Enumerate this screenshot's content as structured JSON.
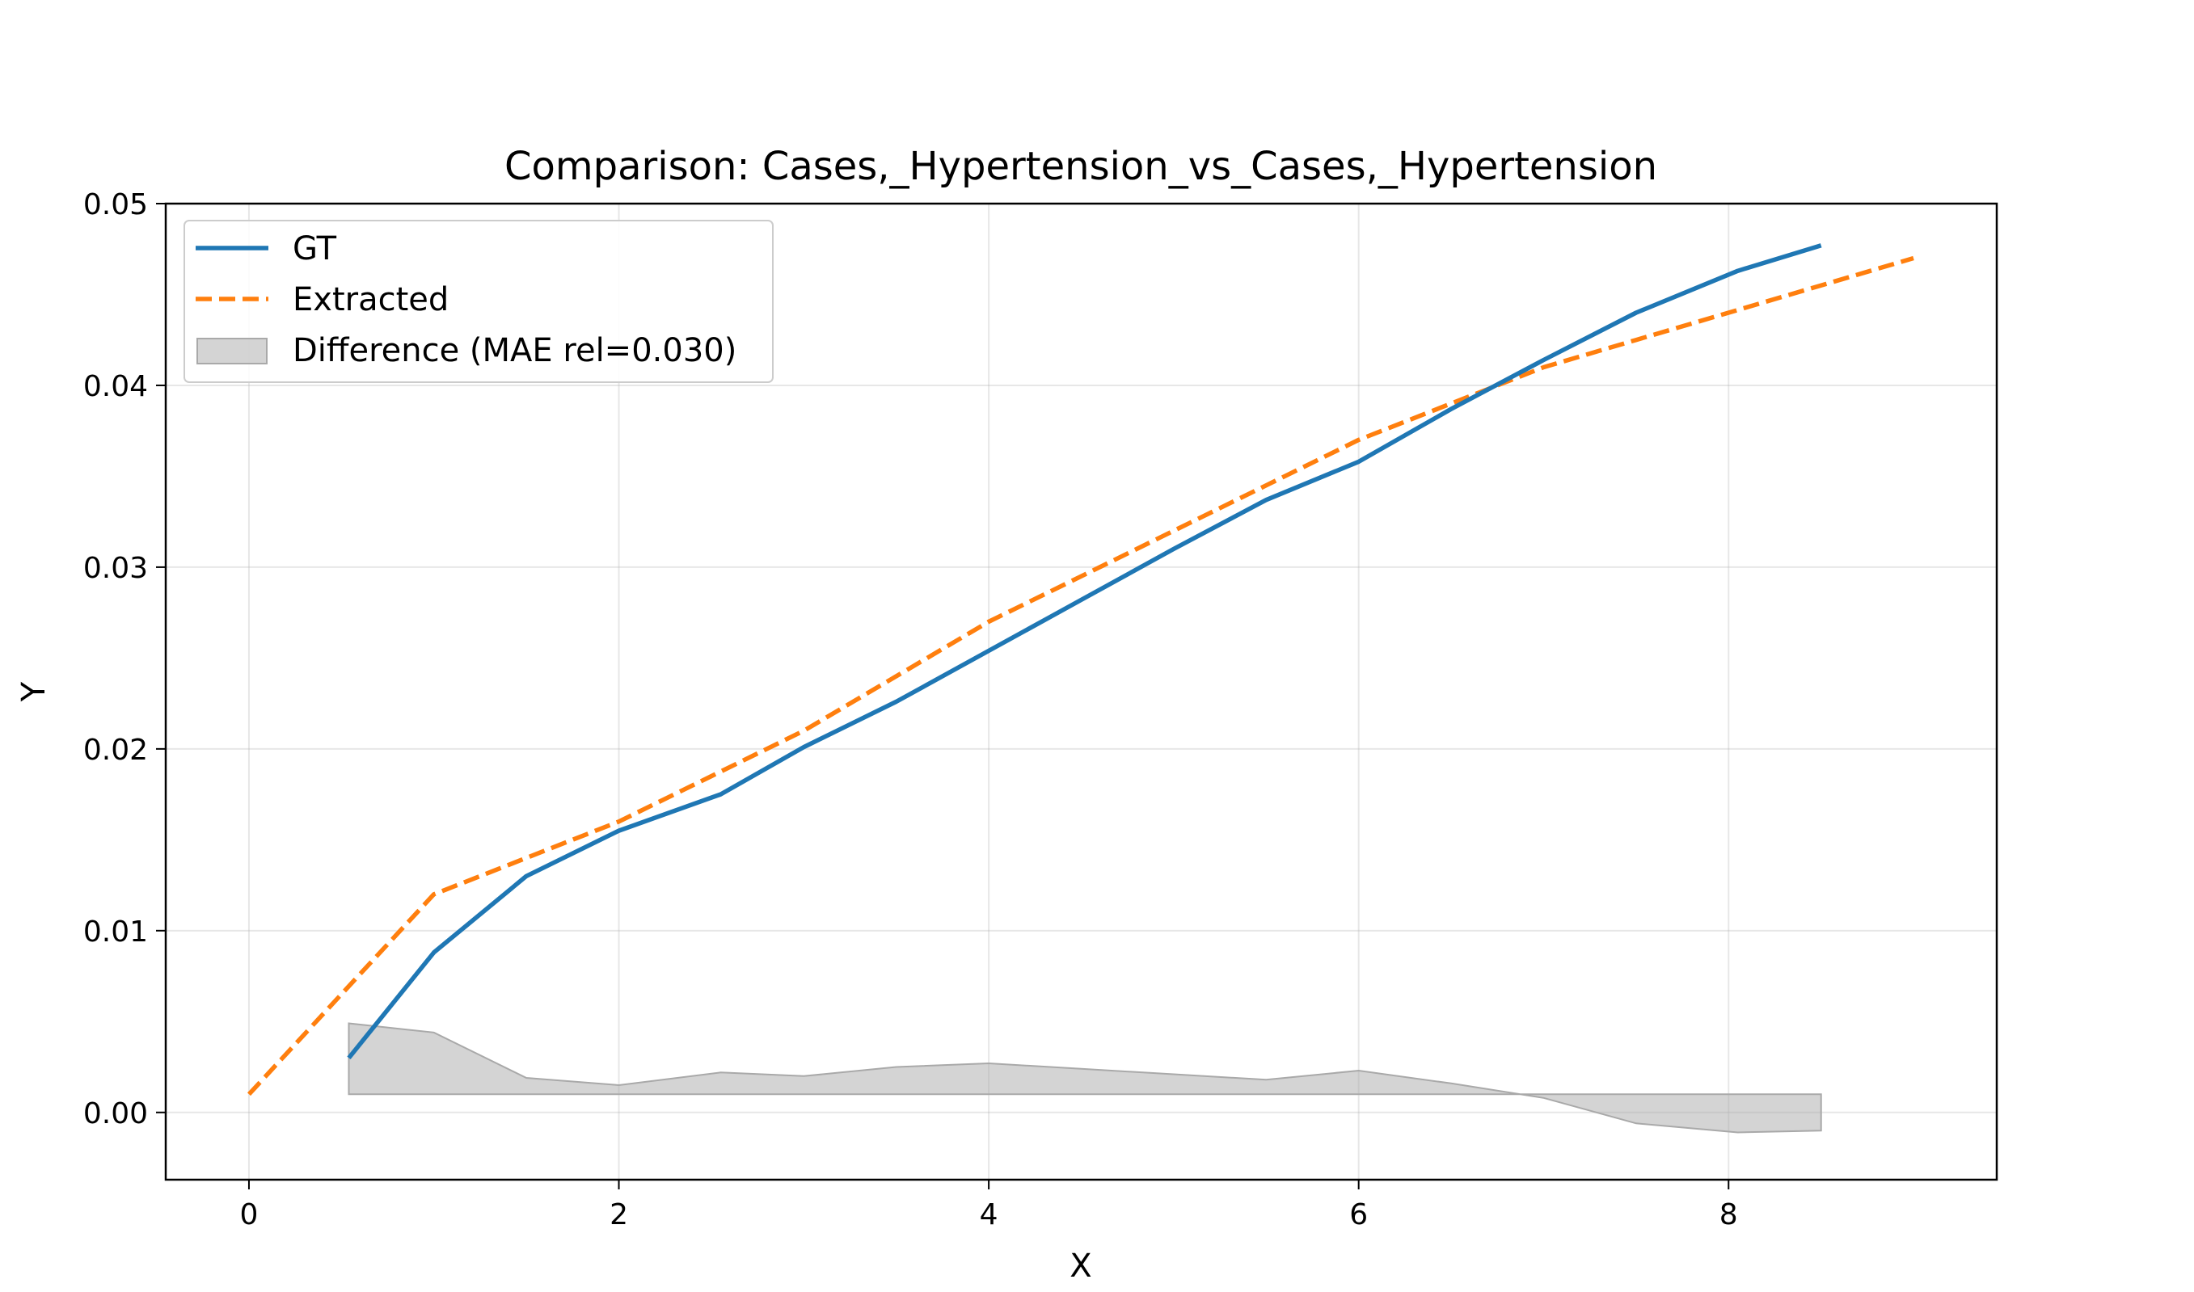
{
  "chart_data": {
    "type": "line",
    "title": "Comparison: Cases,_Hypertension_vs_Cases,_Hypertension",
    "xlabel": "X",
    "ylabel": "Y",
    "xlim": [
      -0.45,
      9.45
    ],
    "ylim": [
      -0.0037,
      0.05
    ],
    "xticks": [
      0,
      2,
      4,
      6,
      8
    ],
    "xtick_labels": [
      "0",
      "2",
      "4",
      "6",
      "8"
    ],
    "yticks": [
      0.0,
      0.01,
      0.02,
      0.03,
      0.04,
      0.05
    ],
    "ytick_labels": [
      "0.00",
      "0.01",
      "0.02",
      "0.03",
      "0.04",
      "0.05"
    ],
    "grid": true,
    "legend_position": "top-left",
    "series": [
      {
        "name": "GT",
        "style": "solid",
        "color": "#1f77b4",
        "x": [
          0.54,
          1.0,
          1.5,
          2.0,
          2.55,
          3.0,
          3.5,
          4.0,
          4.5,
          5.0,
          5.5,
          6.0,
          6.5,
          7.0,
          7.5,
          8.05,
          8.5
        ],
        "y": [
          0.003,
          0.0088,
          0.013,
          0.0155,
          0.0175,
          0.0201,
          0.0226,
          0.0254,
          0.0282,
          0.031,
          0.0337,
          0.0358,
          0.0387,
          0.0414,
          0.044,
          0.0463,
          0.0477
        ]
      },
      {
        "name": "Extracted",
        "style": "dashed",
        "color": "#ff7f0e",
        "x": [
          0.0,
          0.5,
          1.0,
          1.5,
          2.0,
          2.5,
          3.0,
          3.5,
          4.0,
          4.5,
          5.0,
          5.5,
          6.0,
          6.5,
          7.0,
          7.5,
          8.0,
          8.5,
          9.0
        ],
        "y": [
          0.001,
          0.0065,
          0.012,
          0.014,
          0.016,
          0.0185,
          0.021,
          0.024,
          0.027,
          0.0295,
          0.032,
          0.0345,
          0.037,
          0.039,
          0.041,
          0.0425,
          0.044,
          0.0455,
          0.047
        ]
      }
    ],
    "difference_band": {
      "name": "Difference (MAE rel=0.030)",
      "color": "#a9a9a9",
      "baseline": 0.001,
      "x": [
        0.54,
        1.0,
        1.5,
        2.0,
        2.55,
        3.0,
        3.5,
        4.0,
        4.5,
        5.0,
        5.5,
        6.0,
        6.5,
        7.0,
        7.5,
        8.05,
        8.5
      ],
      "y": [
        0.0049,
        0.0044,
        0.0019,
        0.0015,
        0.0022,
        0.002,
        0.0025,
        0.0027,
        0.0024,
        0.0021,
        0.0018,
        0.0023,
        0.0016,
        0.0008,
        -0.0006,
        -0.0011,
        -0.001
      ]
    }
  }
}
